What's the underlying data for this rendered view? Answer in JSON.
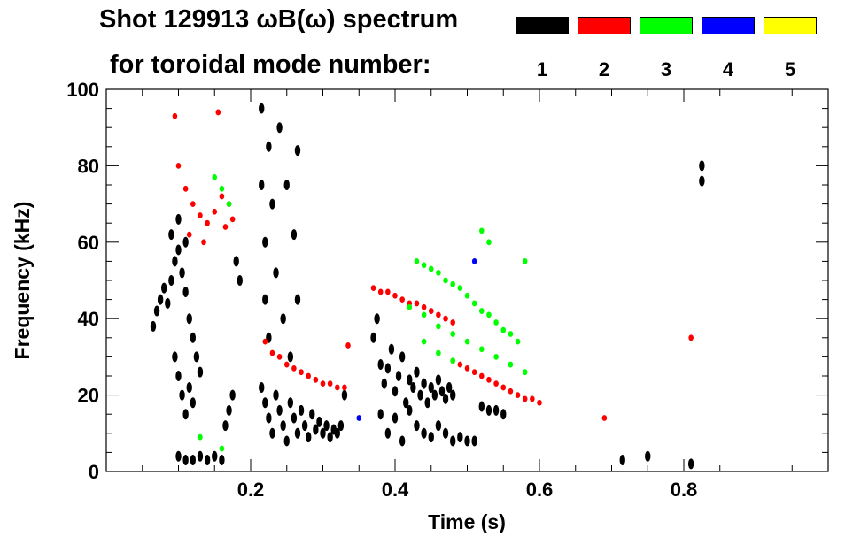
{
  "chart_data": {
    "type": "scatter",
    "title": "Shot 129913 ωB(ω) spectrum",
    "legend_title": "for toroidal mode number:",
    "xlabel": "Time (s)",
    "ylabel": "Frequency (kHz)",
    "xlim": [
      0.0,
      1.0
    ],
    "ylim": [
      0,
      100
    ],
    "xticks": [
      0.2,
      0.4,
      0.6,
      0.8
    ],
    "xtick_labels": [
      "0.2",
      "0.4",
      "0.6",
      "0.8"
    ],
    "yticks": [
      0,
      20,
      40,
      60,
      80,
      100
    ],
    "ytick_labels": [
      "0",
      "20",
      "40",
      "60",
      "80",
      "100"
    ],
    "legend": [
      {
        "label": "1",
        "color": "#000000"
      },
      {
        "label": "2",
        "color": "#ff0000"
      },
      {
        "label": "3",
        "color": "#00ff00"
      },
      {
        "label": "4",
        "color": "#0000ff"
      },
      {
        "label": "5",
        "color": "#ffff00"
      }
    ],
    "series": [
      {
        "name": "n=1",
        "color": "#000000",
        "points": [
          [
            0.065,
            38
          ],
          [
            0.07,
            42
          ],
          [
            0.075,
            45
          ],
          [
            0.08,
            48
          ],
          [
            0.085,
            44
          ],
          [
            0.09,
            50
          ],
          [
            0.095,
            55
          ],
          [
            0.1,
            58
          ],
          [
            0.105,
            52
          ],
          [
            0.11,
            47
          ],
          [
            0.115,
            40
          ],
          [
            0.12,
            35
          ],
          [
            0.125,
            30
          ],
          [
            0.13,
            26
          ],
          [
            0.095,
            30
          ],
          [
            0.1,
            25
          ],
          [
            0.105,
            20
          ],
          [
            0.11,
            15
          ],
          [
            0.115,
            22
          ],
          [
            0.12,
            18
          ],
          [
            0.1,
            4
          ],
          [
            0.11,
            3
          ],
          [
            0.12,
            3
          ],
          [
            0.13,
            4
          ],
          [
            0.14,
            3
          ],
          [
            0.15,
            4
          ],
          [
            0.16,
            3
          ],
          [
            0.165,
            12
          ],
          [
            0.17,
            16
          ],
          [
            0.175,
            20
          ],
          [
            0.18,
            55
          ],
          [
            0.185,
            50
          ],
          [
            0.09,
            62
          ],
          [
            0.1,
            66
          ],
          [
            0.11,
            60
          ],
          [
            0.215,
            95
          ],
          [
            0.215,
            75
          ],
          [
            0.22,
            60
          ],
          [
            0.22,
            45
          ],
          [
            0.225,
            85
          ],
          [
            0.225,
            35
          ],
          [
            0.23,
            70
          ],
          [
            0.235,
            52
          ],
          [
            0.24,
            90
          ],
          [
            0.245,
            40
          ],
          [
            0.25,
            75
          ],
          [
            0.255,
            30
          ],
          [
            0.26,
            62
          ],
          [
            0.265,
            84
          ],
          [
            0.265,
            45
          ],
          [
            0.215,
            22
          ],
          [
            0.22,
            18
          ],
          [
            0.225,
            14
          ],
          [
            0.23,
            10
          ],
          [
            0.235,
            20
          ],
          [
            0.24,
            16
          ],
          [
            0.245,
            12
          ],
          [
            0.25,
            8
          ],
          [
            0.255,
            18
          ],
          [
            0.26,
            14
          ],
          [
            0.265,
            10
          ],
          [
            0.27,
            16
          ],
          [
            0.275,
            12
          ],
          [
            0.28,
            9
          ],
          [
            0.285,
            15
          ],
          [
            0.29,
            11
          ],
          [
            0.295,
            13
          ],
          [
            0.3,
            10
          ],
          [
            0.305,
            12
          ],
          [
            0.31,
            9
          ],
          [
            0.315,
            11
          ],
          [
            0.32,
            10
          ],
          [
            0.325,
            12
          ],
          [
            0.33,
            20
          ],
          [
            0.37,
            35
          ],
          [
            0.375,
            40
          ],
          [
            0.38,
            28
          ],
          [
            0.385,
            23
          ],
          [
            0.39,
            27
          ],
          [
            0.395,
            32
          ],
          [
            0.4,
            21
          ],
          [
            0.405,
            25
          ],
          [
            0.41,
            30
          ],
          [
            0.415,
            18
          ],
          [
            0.42,
            24
          ],
          [
            0.425,
            22
          ],
          [
            0.43,
            26
          ],
          [
            0.435,
            20
          ],
          [
            0.44,
            23
          ],
          [
            0.445,
            18
          ],
          [
            0.45,
            22
          ],
          [
            0.455,
            20
          ],
          [
            0.46,
            24
          ],
          [
            0.465,
            21
          ],
          [
            0.47,
            19
          ],
          [
            0.475,
            22
          ],
          [
            0.48,
            20
          ],
          [
            0.38,
            15
          ],
          [
            0.39,
            10
          ],
          [
            0.4,
            14
          ],
          [
            0.41,
            8
          ],
          [
            0.42,
            16
          ],
          [
            0.43,
            12
          ],
          [
            0.44,
            10
          ],
          [
            0.45,
            9
          ],
          [
            0.46,
            12
          ],
          [
            0.47,
            10
          ],
          [
            0.48,
            8
          ],
          [
            0.49,
            9
          ],
          [
            0.5,
            8
          ],
          [
            0.51,
            8
          ],
          [
            0.52,
            17
          ],
          [
            0.53,
            16
          ],
          [
            0.54,
            16
          ],
          [
            0.55,
            15
          ],
          [
            0.715,
            3
          ],
          [
            0.75,
            4
          ],
          [
            0.81,
            2
          ],
          [
            0.825,
            76
          ],
          [
            0.825,
            80
          ]
        ]
      },
      {
        "name": "n=2",
        "color": "#ff0000",
        "points": [
          [
            0.095,
            93
          ],
          [
            0.1,
            80
          ],
          [
            0.11,
            74
          ],
          [
            0.12,
            70
          ],
          [
            0.13,
            67
          ],
          [
            0.14,
            65
          ],
          [
            0.15,
            68
          ],
          [
            0.16,
            72
          ],
          [
            0.165,
            64
          ],
          [
            0.17,
            70
          ],
          [
            0.175,
            66
          ],
          [
            0.155,
            94
          ],
          [
            0.115,
            62
          ],
          [
            0.135,
            60
          ],
          [
            0.22,
            34
          ],
          [
            0.23,
            31
          ],
          [
            0.24,
            30
          ],
          [
            0.25,
            28
          ],
          [
            0.26,
            27
          ],
          [
            0.27,
            26
          ],
          [
            0.28,
            25
          ],
          [
            0.29,
            24
          ],
          [
            0.3,
            23
          ],
          [
            0.31,
            23
          ],
          [
            0.32,
            22
          ],
          [
            0.33,
            22
          ],
          [
            0.335,
            33
          ],
          [
            0.37,
            48
          ],
          [
            0.38,
            47
          ],
          [
            0.39,
            47
          ],
          [
            0.4,
            46
          ],
          [
            0.41,
            45
          ],
          [
            0.42,
            44
          ],
          [
            0.43,
            44
          ],
          [
            0.44,
            43
          ],
          [
            0.45,
            42
          ],
          [
            0.46,
            41
          ],
          [
            0.47,
            40
          ],
          [
            0.48,
            39
          ],
          [
            0.48,
            29
          ],
          [
            0.49,
            28
          ],
          [
            0.5,
            27
          ],
          [
            0.51,
            26
          ],
          [
            0.52,
            25
          ],
          [
            0.53,
            24
          ],
          [
            0.54,
            23
          ],
          [
            0.55,
            22
          ],
          [
            0.56,
            21
          ],
          [
            0.57,
            20
          ],
          [
            0.58,
            19
          ],
          [
            0.59,
            19
          ],
          [
            0.6,
            18
          ],
          [
            0.69,
            14
          ],
          [
            0.81,
            35
          ]
        ]
      },
      {
        "name": "n=3",
        "color": "#00ff00",
        "points": [
          [
            0.15,
            77
          ],
          [
            0.16,
            74
          ],
          [
            0.17,
            70
          ],
          [
            0.13,
            9
          ],
          [
            0.16,
            6
          ],
          [
            0.43,
            55
          ],
          [
            0.44,
            54
          ],
          [
            0.45,
            53
          ],
          [
            0.46,
            52
          ],
          [
            0.47,
            50
          ],
          [
            0.48,
            49
          ],
          [
            0.49,
            48
          ],
          [
            0.5,
            46
          ],
          [
            0.51,
            44
          ],
          [
            0.52,
            42
          ],
          [
            0.53,
            41
          ],
          [
            0.54,
            39
          ],
          [
            0.55,
            37
          ],
          [
            0.56,
            36
          ],
          [
            0.57,
            34
          ],
          [
            0.52,
            63
          ],
          [
            0.53,
            60
          ],
          [
            0.58,
            55
          ],
          [
            0.42,
            43
          ],
          [
            0.44,
            41
          ],
          [
            0.46,
            38
          ],
          [
            0.48,
            36
          ],
          [
            0.5,
            34
          ],
          [
            0.52,
            32
          ],
          [
            0.54,
            30
          ],
          [
            0.56,
            28
          ],
          [
            0.58,
            26
          ],
          [
            0.44,
            34
          ],
          [
            0.46,
            31
          ],
          [
            0.48,
            29
          ]
        ]
      },
      {
        "name": "n=4",
        "color": "#0000ff",
        "points": [
          [
            0.35,
            14
          ],
          [
            0.51,
            55
          ]
        ]
      },
      {
        "name": "n=5",
        "color": "#ffff00",
        "points": []
      }
    ]
  }
}
